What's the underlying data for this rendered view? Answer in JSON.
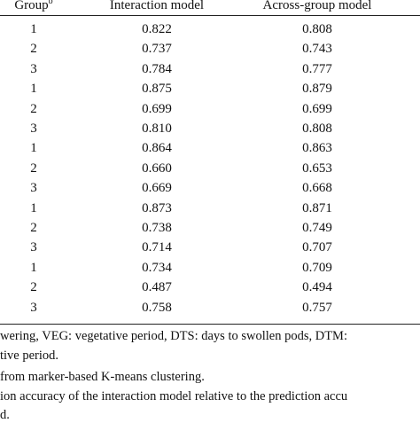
{
  "table": {
    "columns": [
      "Group",
      "Interaction model",
      "Across-group model"
    ],
    "group_superscript": "b",
    "rows": [
      [
        "1",
        "0.822",
        "0.808"
      ],
      [
        "2",
        "0.737",
        "0.743"
      ],
      [
        "3",
        "0.784",
        "0.777"
      ],
      [
        "1",
        "0.875",
        "0.879"
      ],
      [
        "2",
        "0.699",
        "0.699"
      ],
      [
        "3",
        "0.810",
        "0.808"
      ],
      [
        "1",
        "0.864",
        "0.863"
      ],
      [
        "2",
        "0.660",
        "0.653"
      ],
      [
        "3",
        "0.669",
        "0.668"
      ],
      [
        "1",
        "0.873",
        "0.871"
      ],
      [
        "2",
        "0.738",
        "0.749"
      ],
      [
        "3",
        "0.714",
        "0.707"
      ],
      [
        "1",
        "0.734",
        "0.709"
      ],
      [
        "2",
        "0.487",
        "0.494"
      ],
      [
        "3",
        "0.758",
        "0.757"
      ]
    ]
  },
  "footnotes": [
    "wering, VEG: vegetative period, DTS: days to swollen pods, DTM:",
    "tive period.",
    " from marker-based K-means clustering.",
    "ion accuracy of the interaction model relative to the prediction accu",
    "d."
  ]
}
